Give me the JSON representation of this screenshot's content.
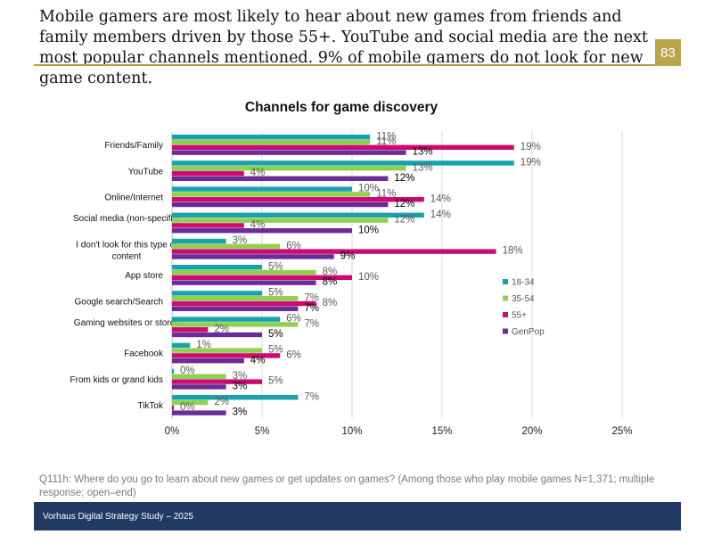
{
  "header": {
    "text": "Mobile gamers are most likely to hear about new games from friends and family members driven by those 55+. YouTube and social media are the next most popular channels mentioned. 9% of mobile gamers do not look for new game content.",
    "page_number": "83"
  },
  "colors": {
    "series_18_34": "#17a2ad",
    "series_35_54": "#8fd14f",
    "series_55_plus": "#cc0a72",
    "series_genpop": "#6a2d98",
    "rule": "#b0a04a",
    "badge": "#b9a64c",
    "footer_bg": "#203a63"
  },
  "chart_data": {
    "type": "bar",
    "orientation": "horizontal",
    "title": "Channels for game discovery",
    "categories": [
      "Friends/Family",
      "YouTube",
      "Online/Internet",
      "Social media (non-specific)",
      "I don't look for this type of content",
      "App store",
      "Google search/Search",
      "Gaming websites or stores",
      "Facebook",
      "From kids or grand kids",
      "TikTok"
    ],
    "series": [
      {
        "name": "18-34",
        "values": [
          11,
          19,
          10,
          14,
          3,
          5,
          5,
          6,
          1,
          0,
          7
        ]
      },
      {
        "name": "35-54",
        "values": [
          11,
          13,
          11,
          12,
          6,
          8,
          7,
          7,
          5,
          3,
          2
        ]
      },
      {
        "name": "55+",
        "values": [
          19,
          4,
          14,
          4,
          18,
          10,
          8,
          2,
          6,
          5,
          0
        ]
      },
      {
        "name": "GenPop",
        "values": [
          13,
          12,
          12,
          10,
          9,
          8,
          7,
          5,
          4,
          3,
          3
        ]
      }
    ],
    "xlim": [
      0,
      25
    ],
    "x_ticks": [
      "0%",
      "5%",
      "10%",
      "15%",
      "20%",
      "25%"
    ],
    "legend_position": "right",
    "gridlines": true
  },
  "footnote": "Q111h: Where do you go to learn about new games or get updates on games? (Among those who play mobile games N=1,371; multiple response; open–end)",
  "footer": {
    "text": "Vorhaus Digital Strategy Study – 2025"
  }
}
